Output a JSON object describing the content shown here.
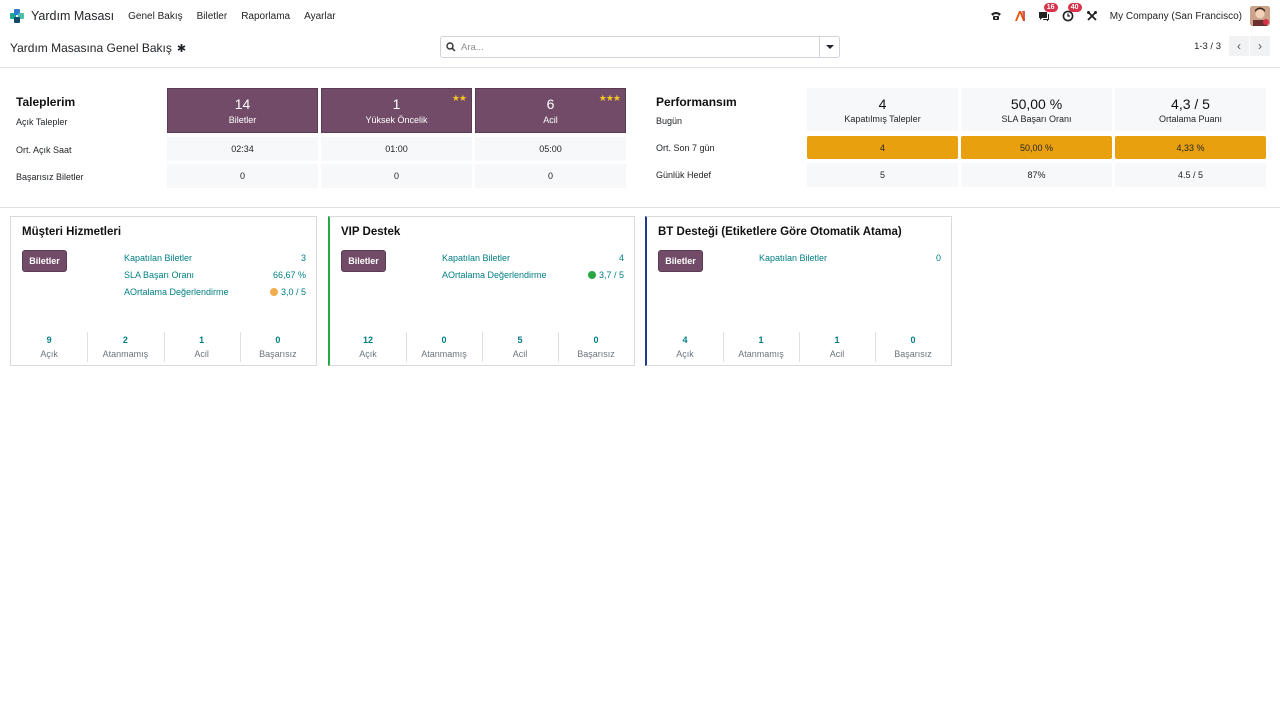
{
  "app": {
    "name": "Yardım Masası",
    "menu": [
      "Genel Bakış",
      "Biletler",
      "Raporlama",
      "Ayarlar"
    ],
    "brand_colors": [
      "#1ea896",
      "#2f7ad0",
      "#4bc0a8",
      "#164a6e"
    ]
  },
  "systray": {
    "phone_icon": "phone-icon",
    "ai_icon": "ai-assistant-icon",
    "messages_badge": "16",
    "activities_badge": "40",
    "company": "My Company (San Francisco)"
  },
  "control_panel": {
    "breadcrumb": "Yardım Masasına Genel Bakış",
    "search_placeholder": "Ara...",
    "pager": "1-3 / 3"
  },
  "my_tickets": {
    "title": "Taleplerim",
    "labels": [
      "Açık Talepler",
      "Ort. Açık Saat",
      "Başarısız Biletler"
    ],
    "tiles": [
      {
        "value": "14",
        "label": "Biletler",
        "stars": ""
      },
      {
        "value": "1",
        "label": "Yüksek Öncelik",
        "stars": "★★"
      },
      {
        "value": "6",
        "label": "Acil",
        "stars": "★★★"
      }
    ],
    "avg_hours": [
      "02:34",
      "01:00",
      "05:00"
    ],
    "failed": [
      "0",
      "0",
      "0"
    ]
  },
  "performance": {
    "title": "Performansım",
    "labels": [
      "Bugün",
      "Ort. Son 7 gün",
      "Günlük Hedef"
    ],
    "today": [
      {
        "value": "4",
        "label": "Kapatılmış Talepler"
      },
      {
        "value": "50,00 %",
        "label": "SLA Başarı Oranı"
      },
      {
        "value": "4,3 / 5",
        "label": "Ortalama Puanı"
      }
    ],
    "last7": [
      "4",
      "50,00 %",
      "4,33 %"
    ],
    "target": [
      "5",
      "87%",
      "4.5 / 5"
    ]
  },
  "teams": [
    {
      "name": "Müşteri Hizmetleri",
      "border_color": "",
      "button": "Biletler",
      "stats": [
        {
          "label": "Kapatılan Biletler",
          "value": "3"
        },
        {
          "label": "SLA Başarı Oranı",
          "value": "66,67 %"
        },
        {
          "label": "AOrtalama Değerlendirme",
          "value": "3,0 / 5",
          "mood": "neutral"
        }
      ],
      "footer": [
        {
          "value": "9",
          "label": "Açık"
        },
        {
          "value": "2",
          "label": "Atanmamış"
        },
        {
          "value": "1",
          "label": "Acil"
        },
        {
          "value": "0",
          "label": "Başarısız"
        }
      ]
    },
    {
      "name": "VIP Destek",
      "border_color": "#28a745",
      "button": "Biletler",
      "stats": [
        {
          "label": "Kapatılan Biletler",
          "value": "4"
        },
        {
          "label": "AOrtalama Değerlendirme",
          "value": "3,7 / 5",
          "mood": "happy"
        }
      ],
      "footer": [
        {
          "value": "12",
          "label": "Açık"
        },
        {
          "value": "0",
          "label": "Atanmamış"
        },
        {
          "value": "5",
          "label": "Acil"
        },
        {
          "value": "0",
          "label": "Başarısız"
        }
      ]
    },
    {
      "name": "BT Desteği (Etiketlere Göre Otomatik Atama)",
      "border_color": "#1f3a93",
      "button": "Biletler",
      "stats": [
        {
          "label": "Kapatılan Biletler",
          "value": "0"
        }
      ],
      "footer": [
        {
          "value": "4",
          "label": "Açık"
        },
        {
          "value": "1",
          "label": "Atanmamış"
        },
        {
          "value": "1",
          "label": "Acil"
        },
        {
          "value": "0",
          "label": "Başarısız"
        }
      ]
    }
  ]
}
